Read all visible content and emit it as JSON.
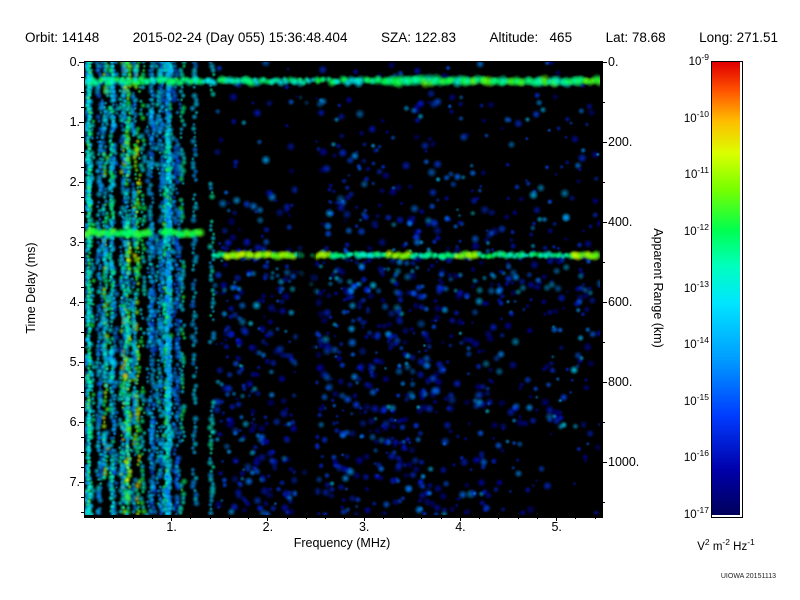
{
  "header": {
    "fields": [
      "Orbit: 14148",
      "2015-02-24 (Day 055) 15:36:48.404",
      "SZA: 122.83",
      "Altitude:   465",
      "Lat: 78.68",
      "Long: 271.51"
    ]
  },
  "watermark": "UIOWA 20151113",
  "chart_data": {
    "type": "heatmap",
    "title": "",
    "xlabel": "Frequency (MHz)",
    "ylabel_left": "Time Delay (ms)",
    "ylabel_right": "Apparent Range (km)",
    "x_range_mhz": [
      0.1,
      5.45
    ],
    "y_range_ms": [
      0.0,
      7.55
    ],
    "km_per_ms": 150,
    "x_ticks": {
      "values": [
        1,
        2,
        3,
        4,
        5
      ],
      "labels": [
        "1.",
        "2.",
        "3.",
        "4.",
        "5."
      ],
      "minor_step": 0.2
    },
    "y_ticks": {
      "values": [
        0,
        1,
        2,
        3,
        4,
        5,
        6,
        7
      ],
      "labels": [
        "0.",
        "1.",
        "2.",
        "3.",
        "4.",
        "5.",
        "6.",
        "7."
      ],
      "minor_step": 0.25
    },
    "right_ticks": {
      "values": [
        0,
        200,
        400,
        600,
        800,
        1000
      ],
      "labels": [
        "0.",
        "200.",
        "400.",
        "600.",
        "800.",
        "1000."
      ],
      "minor_step": 100
    },
    "colorbar": {
      "base": "10",
      "exponents": [
        -9,
        -10,
        -11,
        -12,
        -13,
        -14,
        -15,
        -16,
        -17
      ],
      "unit_parts": [
        {
          "base": "V",
          "exp": "2"
        },
        {
          "base": "m",
          "exp": "-2"
        },
        {
          "base": "Hz",
          "exp": "-1"
        }
      ],
      "colormap_stops": [
        [
          0.0,
          [
            0,
            0,
            90
          ]
        ],
        [
          0.1,
          [
            0,
            0,
            170
          ]
        ],
        [
          0.22,
          [
            0,
            60,
            255
          ]
        ],
        [
          0.35,
          [
            0,
            160,
            255
          ]
        ],
        [
          0.47,
          [
            0,
            230,
            255
          ]
        ],
        [
          0.55,
          [
            0,
            255,
            190
          ]
        ],
        [
          0.63,
          [
            0,
            255,
            80
          ]
        ],
        [
          0.72,
          [
            120,
            255,
            0
          ]
        ],
        [
          0.8,
          [
            220,
            255,
            0
          ]
        ],
        [
          0.87,
          [
            255,
            190,
            0
          ]
        ],
        [
          0.94,
          [
            255,
            80,
            0
          ]
        ],
        [
          1.0,
          [
            225,
            0,
            0
          ]
        ]
      ]
    },
    "features": [
      {
        "name": "diffuse-scatter",
        "blobs": 3400,
        "intensity_range": [
          0.1,
          0.5
        ]
      },
      {
        "name": "low-frequency-interference",
        "f_min": 0.1,
        "f_max": 1.42,
        "stripes": 46,
        "intensity_range": [
          0.28,
          0.72
        ]
      },
      {
        "name": "interference-bright-band",
        "delay_ms": 2.85,
        "segments": [
          [
            0.1,
            0.78
          ],
          [
            0.9,
            1.32
          ]
        ],
        "intensity": 0.64
      },
      {
        "name": "surface-reflection-band",
        "delay_ms": 0.32,
        "f_min": 0.1,
        "f_max": 5.45,
        "intensity": 0.56
      },
      {
        "name": "ionospheric-echo-trace",
        "delay_ms": 3.22,
        "f_min": 1.45,
        "f_max": 5.45,
        "intensity": 0.58,
        "bright_segments": [
          [
            1.55,
            2.28
          ],
          [
            2.5,
            2.64
          ],
          [
            3.22,
            3.48
          ],
          [
            3.95,
            4.18
          ],
          [
            5.15,
            5.45
          ]
        ]
      },
      {
        "name": "quiet-vertical-gap",
        "f_min": 2.3,
        "f_max": 2.5,
        "dim": 0.55
      }
    ]
  }
}
